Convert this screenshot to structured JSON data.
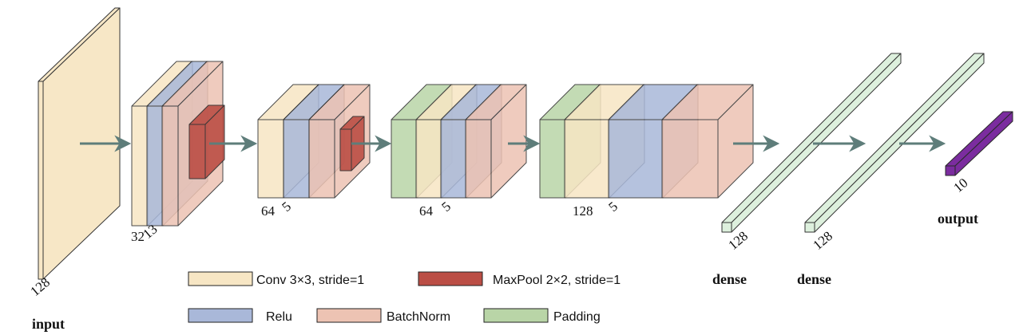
{
  "colors": {
    "conv": "#f7e6c4",
    "relu": "#a9b8d9",
    "batchnorm": "#edc3b3",
    "padding": "#b9d5a7",
    "maxpool": "#bb4e45",
    "dense": "#dcf0dc",
    "output": "#7b2c9f",
    "arrow": "#5e7d7a"
  },
  "labels": {
    "input_dim": "128",
    "input": "input",
    "b1_a": "32",
    "b1_b": "13",
    "b2_a": "64",
    "b2_b": "5",
    "b3_a": "64",
    "b3_b": "5",
    "b4_a": "128",
    "b4_b": "5",
    "dense1_dim": "128",
    "dense2_dim": "128",
    "out_dim": "10",
    "dense1": "dense",
    "dense2": "dense",
    "output": "output"
  },
  "legend": {
    "conv": "Conv 3×3, stride=1",
    "maxpool": "MaxPool 2×2, stride=1",
    "relu": "Relu",
    "batchnorm": "BatchNorm",
    "padding": "Padding"
  }
}
